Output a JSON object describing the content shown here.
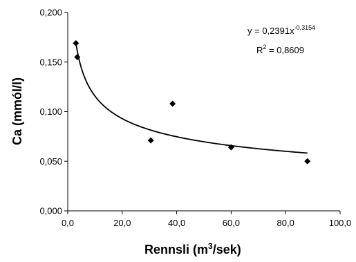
{
  "chart_data": {
    "type": "scatter",
    "xlabel": "Rennsli (m",
    "xlabel_sup": "3",
    "xlabel_end": "/sek)",
    "ylabel": "Ca (mmól/l)",
    "xlim": [
      0,
      100
    ],
    "ylim": [
      0,
      0.2
    ],
    "x_ticks": [
      "0,0",
      "20,0",
      "40,0",
      "60,0",
      "80,0",
      "100,0"
    ],
    "y_ticks": [
      "0,000",
      "0,050",
      "0,100",
      "0,150",
      "0,200"
    ],
    "grid": false,
    "points": [
      {
        "x": 3.0,
        "y": 0.169
      },
      {
        "x": 3.5,
        "y": 0.155
      },
      {
        "x": 30.5,
        "y": 0.071
      },
      {
        "x": 38.5,
        "y": 0.108
      },
      {
        "x": 60.0,
        "y": 0.064
      },
      {
        "x": 88.0,
        "y": 0.05
      }
    ],
    "trendline": {
      "type": "power",
      "coefficient": 0.2391,
      "exponent": -0.3154,
      "x_range": [
        3.0,
        88.0
      ]
    },
    "annotations": {
      "equation_prefix": "y = 0,2391x",
      "equation_exponent": "-0,3154",
      "r2_prefix": "R",
      "r2_sup": "2",
      "r2_value": " = 0,8609"
    }
  }
}
